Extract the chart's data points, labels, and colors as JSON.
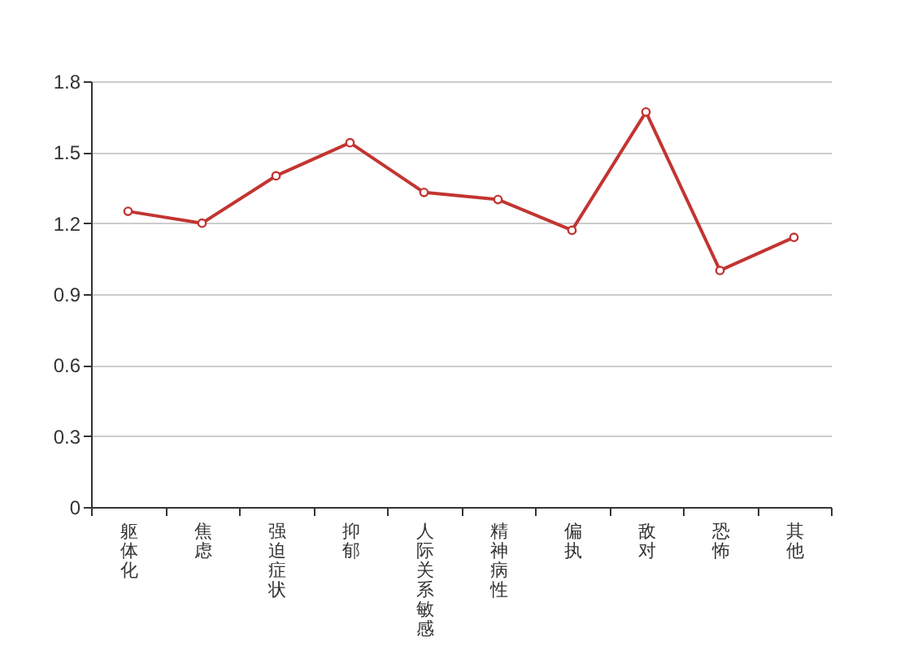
{
  "chart_data": {
    "type": "line",
    "categories": [
      "躯体化",
      "焦虑",
      "强迫症状",
      "抑郁",
      "人际关系敏感",
      "精神病性",
      "偏执",
      "敌对",
      "恐怖",
      "其他"
    ],
    "series": [
      {
        "color": "#c23531",
        "values": [
          1.25,
          1.2,
          1.4,
          1.54,
          1.33,
          1.3,
          1.17,
          1.67,
          1.0,
          1.14
        ]
      }
    ],
    "ylim": [
      0,
      1.8
    ],
    "yticks": [
      0,
      0.3,
      0.6,
      0.9,
      1.2,
      1.5,
      1.8
    ],
    "grid": "y",
    "marker": "circle",
    "legend": false
  }
}
